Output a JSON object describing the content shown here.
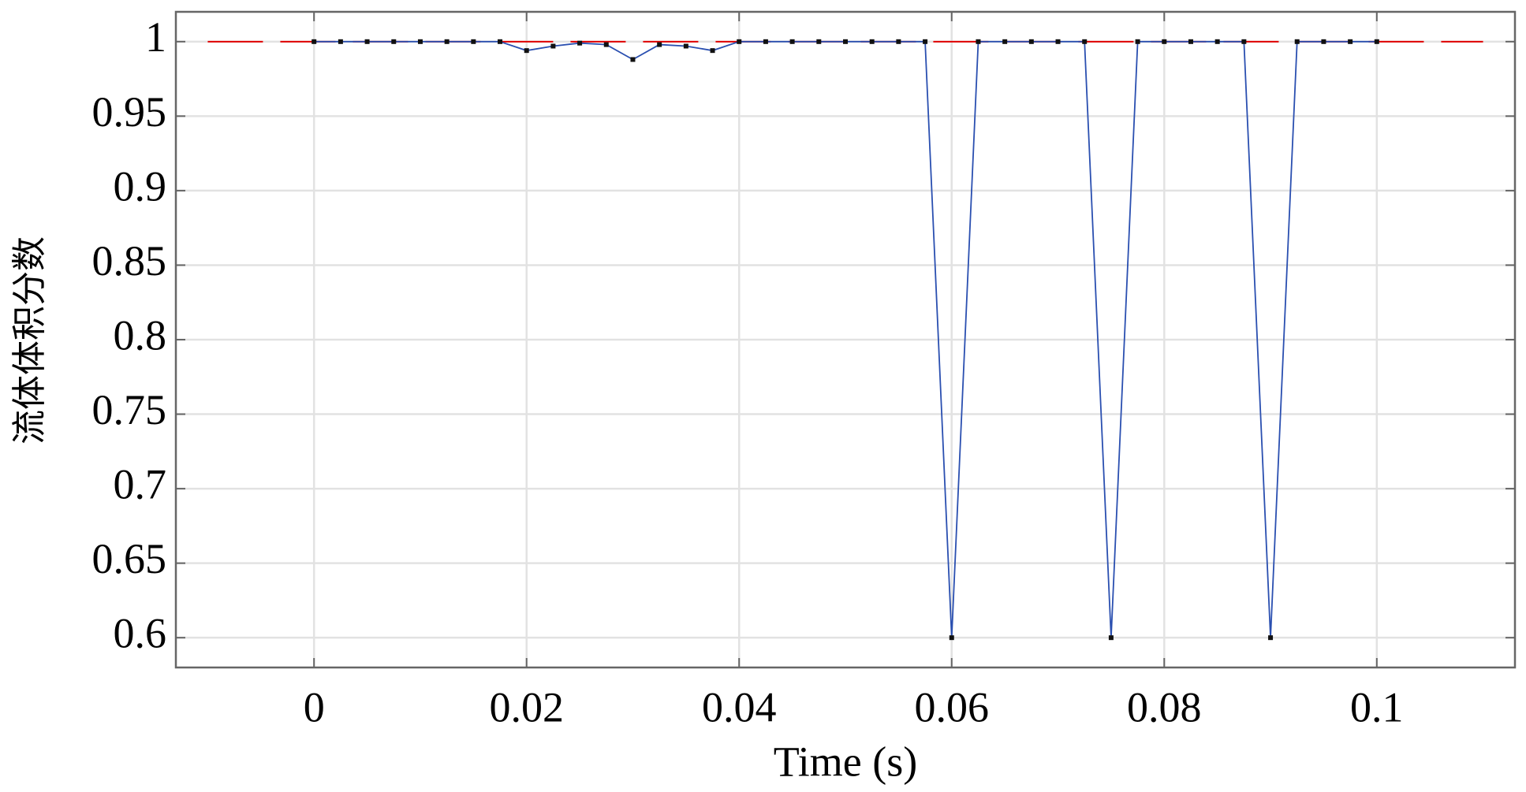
{
  "chart_data": {
    "type": "line",
    "x_label": "Time (s)",
    "y_label": "流体体积分数",
    "x": [
      0,
      0.0025,
      0.005,
      0.0075,
      0.01,
      0.0125,
      0.015,
      0.0175,
      0.02,
      0.0225,
      0.025,
      0.0275,
      0.03,
      0.0325,
      0.035,
      0.0375,
      0.04,
      0.0425,
      0.045,
      0.0475,
      0.05,
      0.0525,
      0.055,
      0.0575,
      0.06,
      0.0625,
      0.065,
      0.0675,
      0.07,
      0.0725,
      0.075,
      0.0775,
      0.08,
      0.0825,
      0.085,
      0.0875,
      0.09,
      0.0925,
      0.095,
      0.0975,
      0.1
    ],
    "series": [
      {
        "color": "#2a4fb0",
        "marker_color": "#111111",
        "markers": true,
        "values": [
          1,
          1,
          1,
          1,
          1,
          1,
          1,
          1,
          0.994,
          0.997,
          0.999,
          0.998,
          0.988,
          0.998,
          0.997,
          0.994,
          1,
          1,
          1,
          1,
          1,
          1,
          1,
          1,
          0.6,
          1,
          1,
          1,
          1,
          1,
          0.6,
          1,
          1,
          1,
          1,
          1,
          0.6,
          1,
          1,
          1,
          1
        ]
      },
      {
        "color": "#e00000",
        "dashed": true,
        "x": [
          -0.01,
          0.11
        ],
        "values": [
          1,
          1
        ]
      }
    ],
    "xlim": [
      -0.013,
      0.113
    ],
    "ylim": [
      0.58,
      1.02
    ],
    "xticks": [
      0,
      0.02,
      0.04,
      0.06,
      0.08,
      0.1
    ],
    "yticks": [
      0.6,
      0.65,
      0.7,
      0.75,
      0.8,
      0.85,
      0.9,
      0.95,
      1
    ],
    "grid": true
  }
}
